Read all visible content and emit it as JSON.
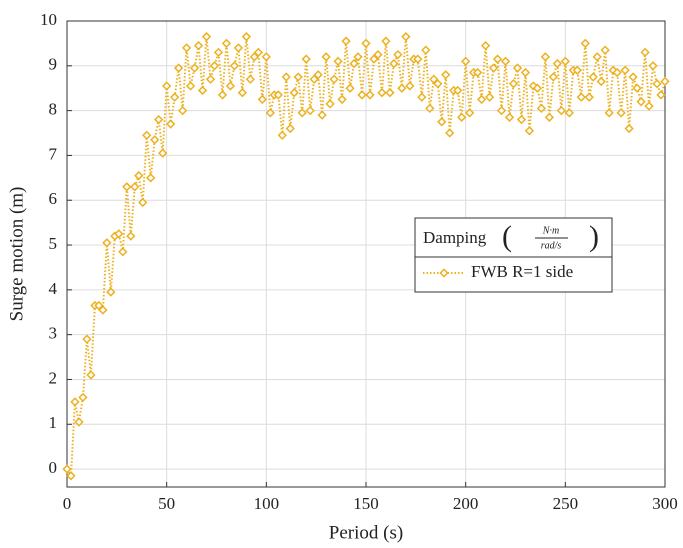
{
  "chart_data": {
    "type": "line",
    "xlabel": "Period (s)",
    "ylabel": "Surge motion (m)",
    "legend_title": "Damping",
    "legend_units": {
      "numerator": "N·m",
      "denominator": "rad/s"
    },
    "xlim": [
      0,
      300
    ],
    "xticks": [
      0,
      50,
      100,
      150,
      200,
      250,
      300
    ],
    "ylim": [
      -0.4,
      10
    ],
    "yticks": [
      0,
      1,
      2,
      3,
      4,
      5,
      6,
      7,
      8,
      9,
      10
    ],
    "grid": true,
    "legend_position": "right",
    "x": [
      0,
      2,
      4,
      6,
      8,
      10,
      12,
      14,
      16,
      18,
      20,
      22,
      24,
      26,
      28,
      30,
      32,
      34,
      36,
      38,
      40,
      42,
      44,
      46,
      48,
      50,
      52,
      54,
      56,
      58,
      60,
      62,
      64,
      66,
      68,
      70,
      72,
      74,
      76,
      78,
      80,
      82,
      84,
      86,
      88,
      90,
      92,
      94,
      96,
      98,
      100,
      102,
      104,
      106,
      108,
      110,
      112,
      114,
      116,
      118,
      120,
      122,
      124,
      126,
      128,
      130,
      132,
      134,
      136,
      138,
      140,
      142,
      144,
      146,
      148,
      150,
      152,
      154,
      156,
      158,
      160,
      162,
      164,
      166,
      168,
      170,
      172,
      174,
      176,
      178,
      180,
      182,
      184,
      186,
      188,
      190,
      192,
      194,
      196,
      198,
      200,
      202,
      204,
      206,
      208,
      210,
      212,
      214,
      216,
      218,
      220,
      222,
      224,
      226,
      228,
      230,
      232,
      234,
      236,
      238,
      240,
      242,
      244,
      246,
      248,
      250,
      252,
      254,
      256,
      258,
      260,
      262,
      264,
      266,
      268,
      270,
      272,
      274,
      276,
      278,
      280,
      282,
      284,
      286,
      288,
      290,
      292,
      294,
      296,
      298,
      300
    ],
    "series": [
      {
        "name": "FWB R=1 side",
        "color": "#edb120",
        "values": [
          0,
          -0.15,
          1.5,
          1.05,
          1.6,
          2.9,
          2.1,
          3.65,
          3.65,
          3.55,
          5.05,
          3.95,
          5.2,
          5.25,
          4.85,
          6.3,
          5.2,
          6.3,
          6.55,
          5.95,
          7.45,
          6.5,
          7.35,
          7.8,
          7.05,
          8.55,
          7.7,
          8.3,
          8.95,
          8.0,
          9.4,
          8.55,
          8.95,
          9.45,
          8.45,
          9.65,
          8.7,
          9.0,
          9.3,
          8.35,
          9.5,
          8.55,
          9.0,
          9.4,
          8.4,
          9.65,
          8.7,
          9.2,
          9.3,
          8.25,
          9.2,
          7.95,
          8.35,
          8.35,
          7.45,
          8.75,
          7.6,
          8.4,
          8.75,
          7.95,
          9.15,
          8.0,
          8.7,
          8.8,
          7.9,
          9.2,
          8.15,
          8.7,
          9.1,
          8.25,
          9.55,
          8.5,
          9.05,
          9.2,
          8.35,
          9.5,
          8.35,
          9.15,
          9.25,
          8.4,
          9.55,
          8.4,
          9.05,
          9.25,
          8.5,
          9.65,
          8.55,
          9.15,
          9.15,
          8.3,
          9.35,
          8.05,
          8.7,
          8.6,
          7.75,
          8.8,
          7.5,
          8.45,
          8.45,
          7.85,
          9.1,
          7.95,
          8.85,
          8.85,
          8.25,
          9.45,
          8.3,
          8.95,
          9.15,
          8.0,
          9.1,
          7.85,
          8.6,
          8.95,
          7.8,
          8.85,
          7.55,
          8.55,
          8.5,
          8.05,
          9.2,
          7.85,
          8.75,
          9.05,
          8.0,
          9.1,
          7.95,
          8.9,
          8.9,
          8.3,
          9.5,
          8.3,
          8.75,
          9.2,
          8.65,
          9.35,
          7.95,
          8.9,
          8.85,
          7.95,
          8.9,
          7.6,
          8.75,
          8.5,
          8.2,
          9.3,
          8.1,
          9.0,
          8.6,
          8.35,
          8.65
        ]
      }
    ]
  }
}
